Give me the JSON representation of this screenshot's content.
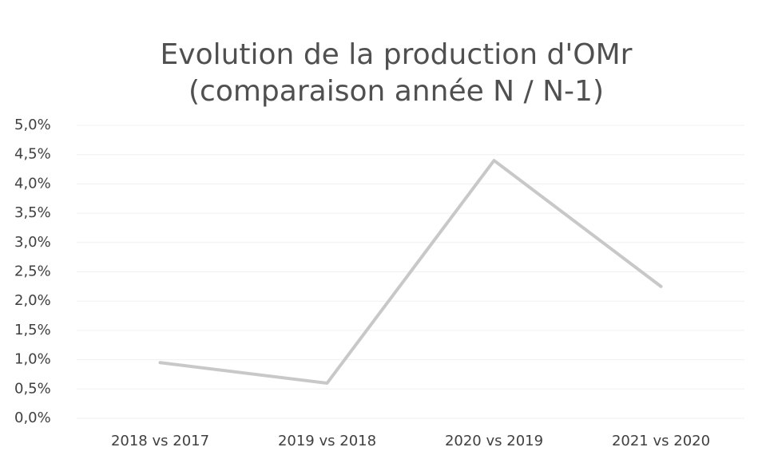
{
  "chart_data": {
    "type": "line",
    "title": [
      "Evolution de la production d'OMr",
      "(comparaison année N / N-1)"
    ],
    "categories": [
      "2018 vs 2017",
      "2019 vs 2018",
      "2020 vs 2019",
      "2021 vs 2020"
    ],
    "series": [
      {
        "name": "OMr",
        "color": "#c8c8c8",
        "values": [
          0.95,
          0.6,
          4.4,
          2.25
        ]
      }
    ],
    "ylim": [
      0,
      5
    ],
    "yticks": [
      {
        "value": 0,
        "label": "0,0%"
      },
      {
        "value": 0.5,
        "label": "0,5%"
      },
      {
        "value": 1,
        "label": "1,0%"
      },
      {
        "value": 1.5,
        "label": "1,5%"
      },
      {
        "value": 2,
        "label": "2,0%"
      },
      {
        "value": 2.5,
        "label": "2,5%"
      },
      {
        "value": 3,
        "label": "3,0%"
      },
      {
        "value": 3.5,
        "label": "3,5%"
      },
      {
        "value": 4,
        "label": "4,0%"
      },
      {
        "value": 4.5,
        "label": "4,5%"
      },
      {
        "value": 5,
        "label": "5,0%"
      }
    ],
    "grid": true
  }
}
